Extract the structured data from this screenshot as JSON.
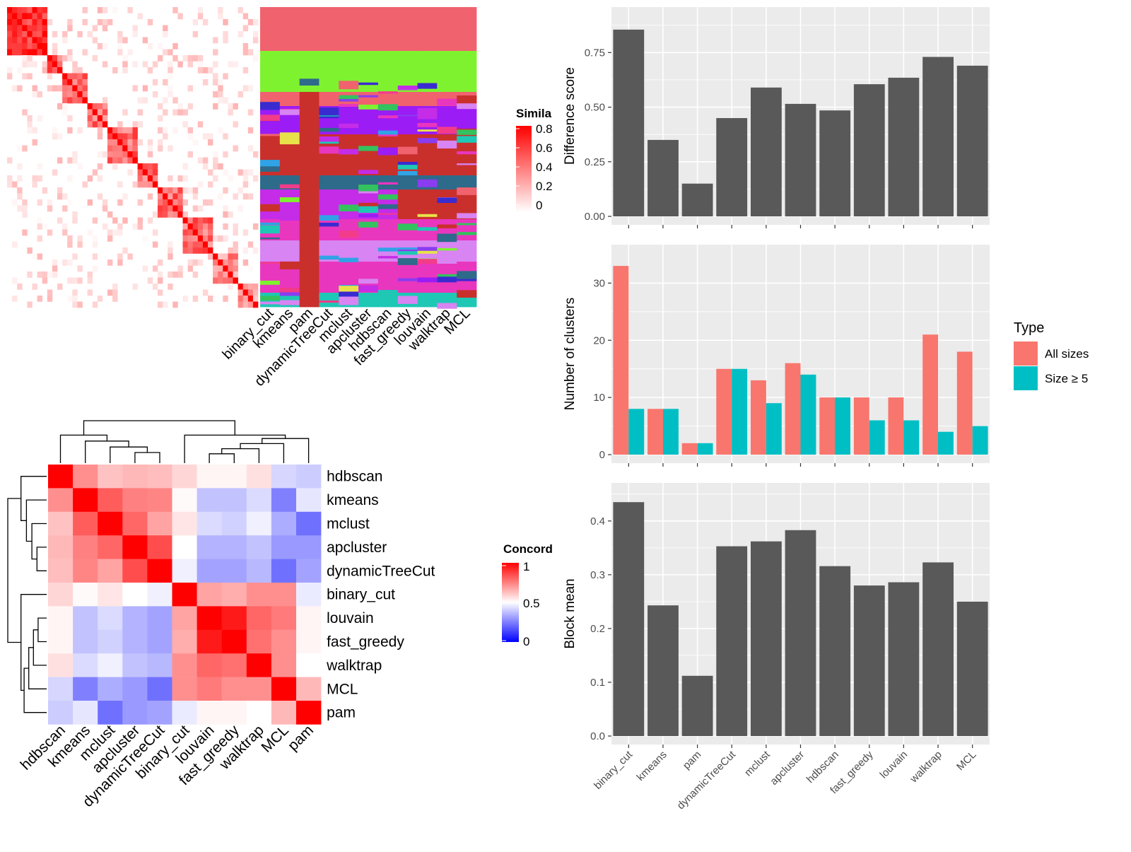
{
  "colors": {
    "bar": "#595959",
    "panel_bg": "#EBEBEB",
    "grid": "#FFFFFF",
    "all_sizes": "#F8766D",
    "size_ge_5": "#00BFC4",
    "heat_high": "#FF0000",
    "heat_mid": "#FFFFFF",
    "heat_low": "#0000FF"
  },
  "similarity_heatmap": {
    "legend_title": "Simila",
    "legend_labels": [
      "0.8",
      "0.6",
      "0.4",
      "0.2",
      "0"
    ]
  },
  "cluster_assignment_heatmap": {
    "column_labels": [
      "binary_cut",
      "kmeans",
      "pam",
      "dynamicTreeCut",
      "mclust",
      "apcluster",
      "hdbscan",
      "fast_greedy",
      "louvain",
      "walktrap",
      "MCL"
    ]
  },
  "concordance_heatmap": {
    "legend_title": "Concord",
    "legend_labels": [
      "1",
      "0.5",
      "0"
    ],
    "methods": [
      "hdbscan",
      "kmeans",
      "mclust",
      "apcluster",
      "dynamicTreeCut",
      "binary_cut",
      "louvain",
      "fast_greedy",
      "walktrap",
      "MCL",
      "pam"
    ],
    "matrix": [
      [
        1.0,
        0.72,
        0.62,
        0.64,
        0.63,
        0.58,
        0.52,
        0.52,
        0.56,
        0.42,
        0.4
      ],
      [
        0.72,
        1.0,
        0.82,
        0.75,
        0.74,
        0.51,
        0.38,
        0.38,
        0.43,
        0.25,
        0.45
      ],
      [
        0.62,
        0.82,
        1.0,
        0.8,
        0.68,
        0.55,
        0.43,
        0.41,
        0.47,
        0.34,
        0.22
      ],
      [
        0.64,
        0.75,
        0.8,
        1.0,
        0.85,
        0.5,
        0.35,
        0.35,
        0.38,
        0.3,
        0.3
      ],
      [
        0.63,
        0.74,
        0.68,
        0.85,
        1.0,
        0.47,
        0.32,
        0.32,
        0.36,
        0.22,
        0.32
      ],
      [
        0.58,
        0.51,
        0.55,
        0.5,
        0.47,
        1.0,
        0.68,
        0.66,
        0.72,
        0.72,
        0.46
      ],
      [
        0.52,
        0.38,
        0.43,
        0.35,
        0.32,
        0.68,
        1.0,
        0.95,
        0.8,
        0.76,
        0.52
      ],
      [
        0.52,
        0.38,
        0.41,
        0.35,
        0.32,
        0.66,
        0.95,
        1.0,
        0.78,
        0.72,
        0.52
      ],
      [
        0.56,
        0.43,
        0.47,
        0.38,
        0.36,
        0.72,
        0.8,
        0.78,
        1.0,
        0.72,
        0.5
      ],
      [
        0.42,
        0.25,
        0.34,
        0.3,
        0.22,
        0.72,
        0.76,
        0.72,
        0.72,
        1.0,
        0.64
      ],
      [
        0.4,
        0.45,
        0.22,
        0.3,
        0.32,
        0.46,
        0.52,
        0.52,
        0.5,
        0.64,
        1.0
      ]
    ]
  },
  "chart_data": [
    {
      "type": "bar",
      "categories": [
        "binary_cut",
        "kmeans",
        "pam",
        "dynamicTreeCut",
        "mclust",
        "apcluster",
        "hdbscan",
        "fast_greedy",
        "louvain",
        "walktrap",
        "MCL"
      ],
      "values": [
        0.855,
        0.35,
        0.15,
        0.45,
        0.59,
        0.515,
        0.485,
        0.605,
        0.635,
        0.73,
        0.69
      ],
      "ylabel": "Difference score",
      "ylim": [
        0,
        0.9
      ],
      "yticks": [
        "0.00",
        "0.25",
        "0.50",
        "0.75"
      ],
      "grid": true
    },
    {
      "type": "bar",
      "categories": [
        "binary_cut",
        "kmeans",
        "pam",
        "dynamicTreeCut",
        "mclust",
        "apcluster",
        "hdbscan",
        "fast_greedy",
        "louvain",
        "walktrap",
        "MCL"
      ],
      "series": [
        {
          "name": "All sizes",
          "values": [
            33,
            8,
            2,
            15,
            13,
            16,
            10,
            10,
            10,
            21,
            18
          ]
        },
        {
          "name": "Size ≥ 5",
          "values": [
            8,
            8,
            2,
            15,
            9,
            14,
            10,
            6,
            6,
            4,
            5
          ]
        }
      ],
      "ylabel": "Number of clusters",
      "ylim": [
        0,
        34.5
      ],
      "yticks": [
        "0",
        "10",
        "20",
        "30"
      ],
      "legend_title": "Type",
      "legend_position": "right",
      "grid": true
    },
    {
      "type": "bar",
      "categories": [
        "binary_cut",
        "kmeans",
        "pam",
        "dynamicTreeCut",
        "mclust",
        "apcluster",
        "hdbscan",
        "fast_greedy",
        "louvain",
        "walktrap",
        "MCL"
      ],
      "values": [
        0.435,
        0.243,
        0.112,
        0.353,
        0.362,
        0.383,
        0.316,
        0.28,
        0.286,
        0.323,
        0.25
      ],
      "ylabel": "Block mean",
      "ylim": [
        0,
        0.455
      ],
      "yticks": [
        "0.0",
        "0.1",
        "0.2",
        "0.3",
        "0.4"
      ],
      "grid": true
    }
  ]
}
